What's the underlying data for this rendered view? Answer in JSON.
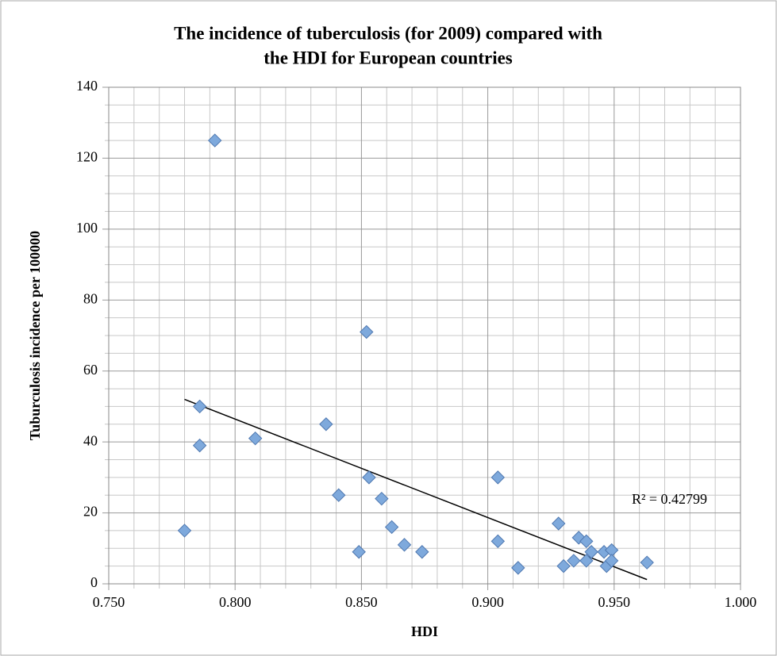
{
  "chart_data": {
    "type": "scatter",
    "title": [
      "The incidence of tuberculosis (for 2009) compared with",
      "the HDI for European countries"
    ],
    "x_label": "HDI",
    "y_label": "Tuburculosis incidence per 100000",
    "x": [
      0.78,
      0.786,
      0.786,
      0.792,
      0.808,
      0.836,
      0.841,
      0.849,
      0.852,
      0.853,
      0.858,
      0.862,
      0.867,
      0.874,
      0.904,
      0.904,
      0.912,
      0.928,
      0.93,
      0.934,
      0.936,
      0.939,
      0.939,
      0.941,
      0.946,
      0.947,
      0.949,
      0.949,
      0.963
    ],
    "values": [
      15,
      50,
      39,
      125,
      41,
      45,
      25,
      9,
      71,
      30,
      24,
      16,
      11,
      9,
      30,
      12,
      4.5,
      17,
      5,
      6.5,
      13,
      12,
      6.5,
      9,
      9,
      5,
      9.5,
      6.5,
      6
    ],
    "color": "#7ea9dc",
    "trendline": {
      "x": [
        0.78,
        0.963
      ],
      "y": [
        52,
        1.2
      ],
      "color": "#000000"
    },
    "annotation": "R² = 0.42799",
    "xlim": [
      0.75,
      1.0
    ],
    "xticks": [
      {
        "value": 0.75,
        "label": "0.750"
      },
      {
        "value": 0.8,
        "label": "0.800"
      },
      {
        "value": 0.85,
        "label": "0.850"
      },
      {
        "value": 0.9,
        "label": "0.900"
      },
      {
        "value": 0.95,
        "label": "0.950"
      },
      {
        "value": 1.0,
        "label": "1.000"
      }
    ],
    "ylim": [
      0,
      140
    ],
    "yticks": [
      0,
      20,
      40,
      60,
      80,
      100,
      120,
      140
    ],
    "grid": true
  }
}
